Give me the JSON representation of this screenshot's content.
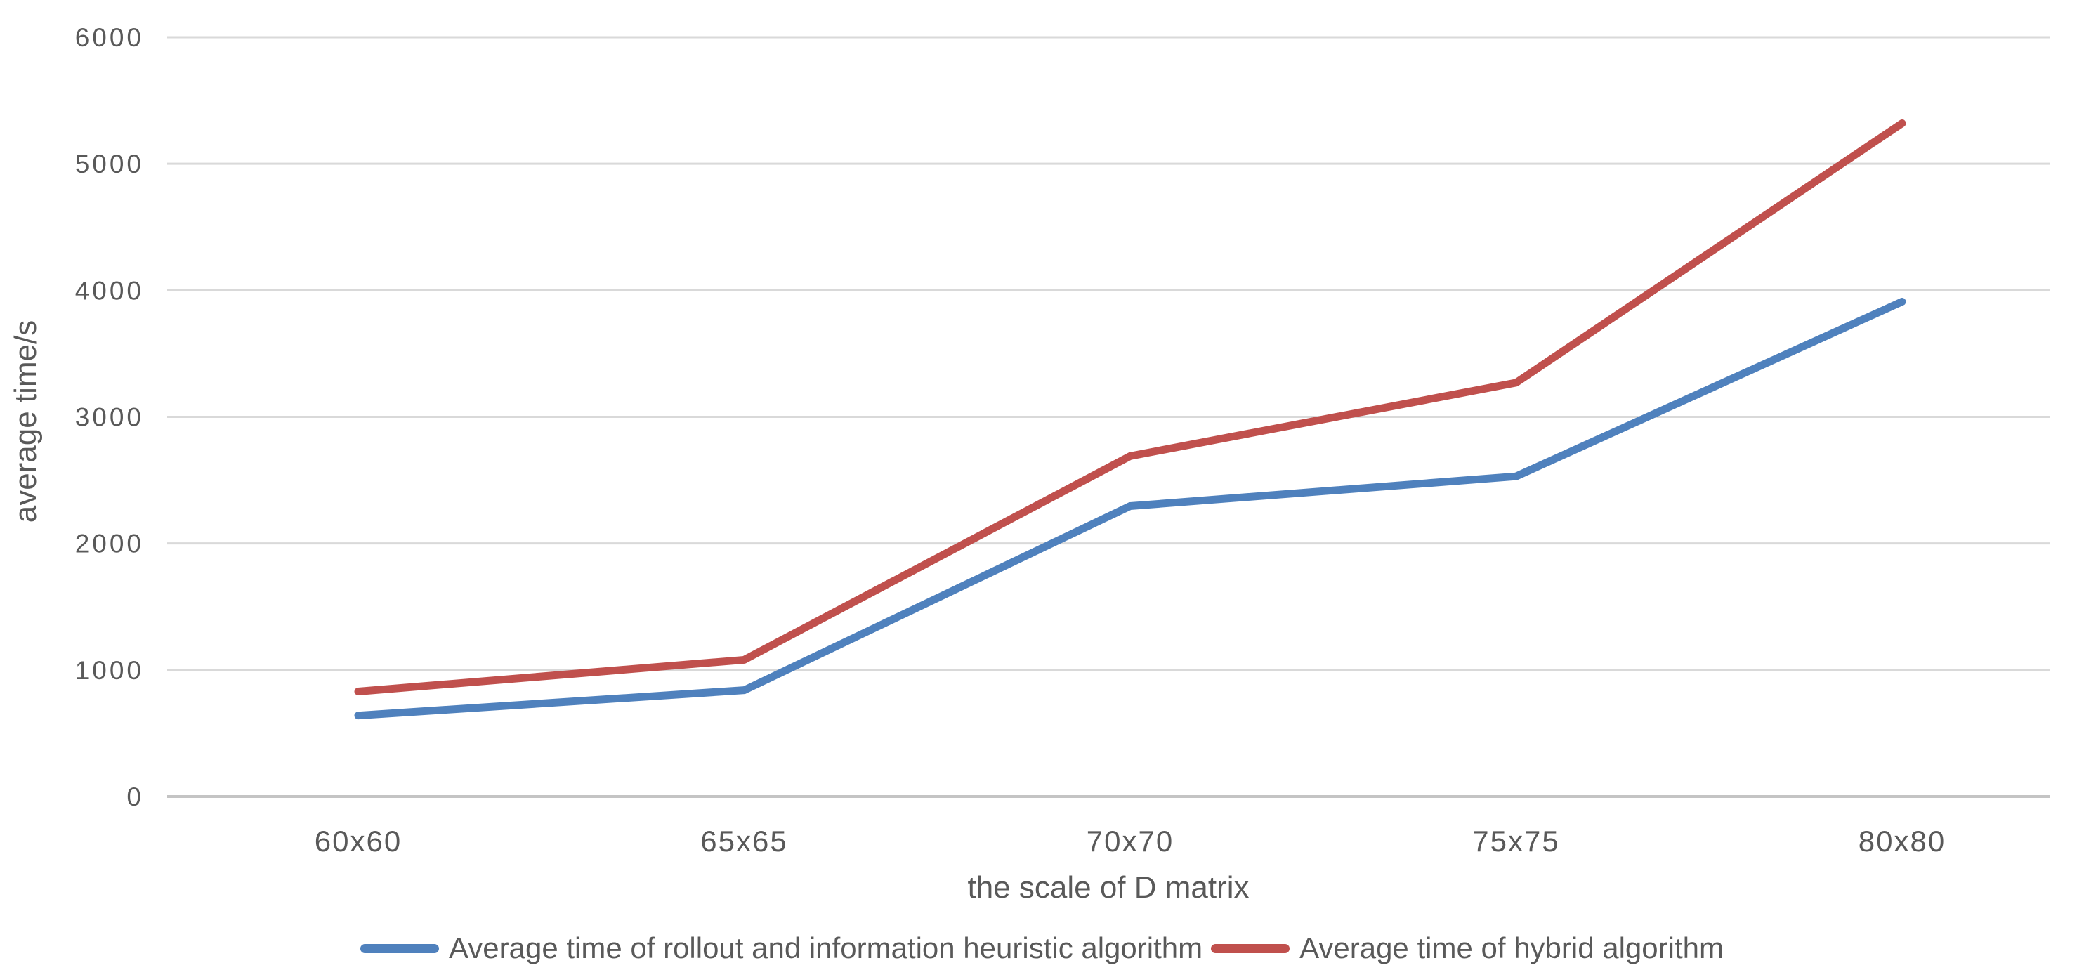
{
  "chart_data": {
    "type": "line",
    "categories": [
      "60x60",
      "65x65",
      "70x70",
      "75x75",
      "80x80"
    ],
    "series": [
      {
        "name": "Average time of rollout and information heuristic algorithm",
        "color": "#4F81BD",
        "values": [
          640,
          840,
          2295,
          2530,
          3910
        ]
      },
      {
        "name": "Average time of hybrid algorithm",
        "color": "#C0504D",
        "values": [
          830,
          1080,
          2690,
          3270,
          5320
        ]
      }
    ],
    "xlabel": "the scale of D matrix",
    "ylabel": "average time/s",
    "ylim": [
      0,
      6000
    ],
    "ytick_step": 1000,
    "yticks": [
      "0",
      "1000",
      "2000",
      "3000",
      "4000",
      "5000",
      "6000"
    ],
    "grid": true,
    "legend_position": "bottom",
    "colors": {
      "gridline": "#D9D9D9",
      "axis_line": "#C4C4C4",
      "text": "#595959",
      "background": "#FFFFFF"
    }
  }
}
